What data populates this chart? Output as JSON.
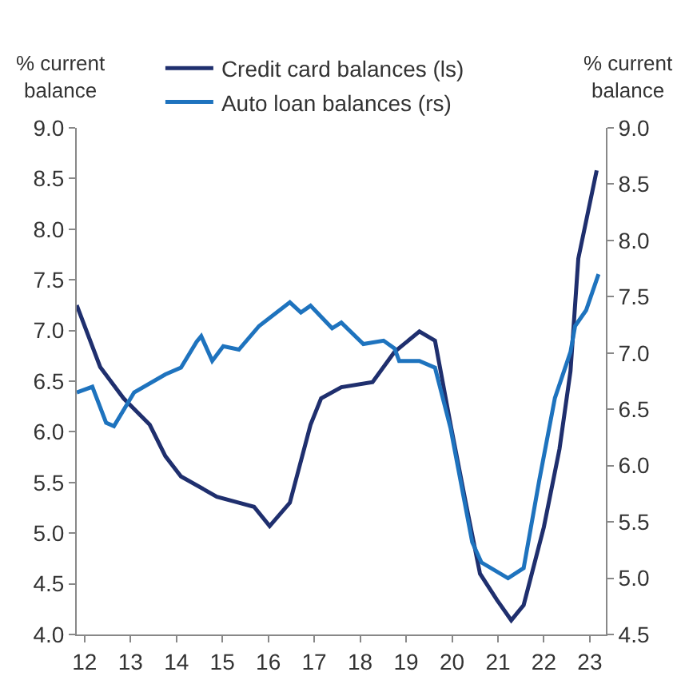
{
  "chart_data": {
    "type": "line",
    "ylabel": "% current balance",
    "y2label": "% current balance",
    "xlim": [
      11.83,
      23.35
    ],
    "xticks": [
      {
        "value": 12,
        "label": "12"
      },
      {
        "value": 13,
        "label": "13"
      },
      {
        "value": 14,
        "label": "14"
      },
      {
        "value": 15,
        "label": "15"
      },
      {
        "value": 16,
        "label": "16"
      },
      {
        "value": 17,
        "label": "17"
      },
      {
        "value": 18,
        "label": "18"
      },
      {
        "value": 19,
        "label": "19"
      },
      {
        "value": 20,
        "label": "20"
      },
      {
        "value": 21,
        "label": "21"
      },
      {
        "value": 22,
        "label": "22"
      },
      {
        "value": 23,
        "label": "23"
      }
    ],
    "ylim": [
      4.0,
      9.0
    ],
    "yticks": [
      {
        "value": 4,
        "label": "4.0"
      },
      {
        "value": 4.5,
        "label": "4.5"
      },
      {
        "value": 5,
        "label": "5.0"
      },
      {
        "value": 5.5,
        "label": "5.5"
      },
      {
        "value": 6,
        "label": "6.0"
      },
      {
        "value": 6.5,
        "label": "6.5"
      },
      {
        "value": 7,
        "label": "7.0"
      },
      {
        "value": 7.5,
        "label": "7.5"
      },
      {
        "value": 8,
        "label": "8.0"
      },
      {
        "value": 8.5,
        "label": "8.5"
      },
      {
        "value": 9,
        "label": "9.0"
      }
    ],
    "y2lim": [
      4.5,
      9.0
    ],
    "y2ticks": [
      {
        "value": 4.5,
        "label": "4.5"
      },
      {
        "value": 5,
        "label": "5.0"
      },
      {
        "value": 5.5,
        "label": "5.5"
      },
      {
        "value": 6,
        "label": "6.0"
      },
      {
        "value": 6.5,
        "label": "6.5"
      },
      {
        "value": 7,
        "label": "7.0"
      },
      {
        "value": 7.5,
        "label": "7.5"
      },
      {
        "value": 8,
        "label": "8.0"
      },
      {
        "value": 8.5,
        "label": "8.5"
      },
      {
        "value": 9,
        "label": "9.0"
      }
    ],
    "legend": "top",
    "marker": "none",
    "line_style": "solid",
    "series": [
      {
        "name": "Credit card balances (ls)",
        "color": "#1f2f6e",
        "x": [
          11.83,
          12.34,
          12.85,
          13.42,
          13.76,
          14.1,
          14.88,
          15.36,
          15.69,
          16.03,
          16.47,
          16.92,
          17.15,
          17.59,
          18.27,
          18.75,
          19.29,
          19.63,
          19.97,
          20.3,
          20.61,
          20.98,
          21.29,
          21.56,
          22.0,
          22.34,
          22.58,
          22.75,
          23.15
        ],
        "values": [
          7.25,
          6.64,
          6.33,
          6.07,
          5.76,
          5.56,
          5.36,
          5.3,
          5.26,
          5.07,
          5.3,
          6.07,
          6.33,
          6.44,
          6.49,
          6.79,
          6.99,
          6.9,
          6.07,
          5.3,
          4.6,
          4.34,
          4.14,
          4.29,
          5.06,
          5.83,
          6.6,
          7.71,
          8.58
        ]
      },
      {
        "name": "Auto loan balances (rs)",
        "color": "#1e73be",
        "axis": "y2",
        "x": [
          11.83,
          12.17,
          12.47,
          12.64,
          13.08,
          13.76,
          14.1,
          14.44,
          14.54,
          14.78,
          15.02,
          15.36,
          15.8,
          16.47,
          16.71,
          16.92,
          17.39,
          17.59,
          18.07,
          18.51,
          18.75,
          18.85,
          19.29,
          19.63,
          19.97,
          20.44,
          20.64,
          21.22,
          21.56,
          21.9,
          22.24,
          22.58,
          22.68,
          22.92,
          23.19
        ],
        "values": [
          6.65,
          6.7,
          6.38,
          6.35,
          6.65,
          6.81,
          6.87,
          7.1,
          7.15,
          6.93,
          7.06,
          7.03,
          7.24,
          7.45,
          7.36,
          7.42,
          7.22,
          7.27,
          7.08,
          7.11,
          7.04,
          6.93,
          6.93,
          6.87,
          6.33,
          5.32,
          5.14,
          5.0,
          5.09,
          5.87,
          6.6,
          7.01,
          7.24,
          7.38,
          7.7
        ]
      }
    ]
  }
}
